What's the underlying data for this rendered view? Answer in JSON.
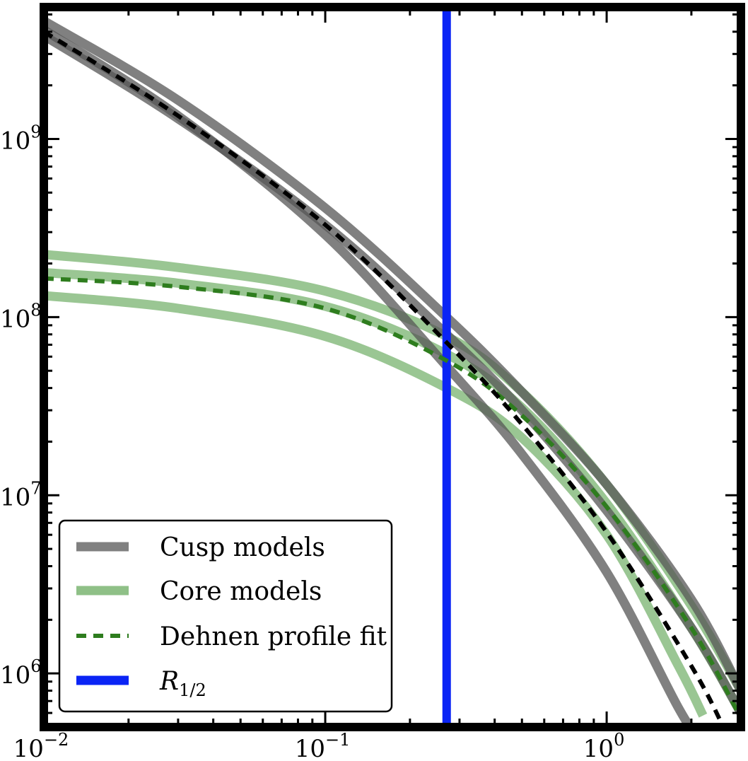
{
  "chart_data": {
    "type": "line",
    "title": "",
    "xlabel": "",
    "ylabel": "",
    "xscale": "log",
    "yscale": "log",
    "xlim": [
      0.01,
      3.0
    ],
    "ylim": [
      500000,
      5500000000
    ],
    "x_ticks": [
      {
        "value": 0.01,
        "base": "10",
        "exp": "−2"
      },
      {
        "value": 0.1,
        "base": "10",
        "exp": "−1"
      },
      {
        "value": 1.0,
        "base": "10",
        "exp": "0"
      }
    ],
    "y_ticks": [
      {
        "value": 1000000,
        "base": "10",
        "exp": "6"
      },
      {
        "value": 10000000,
        "base": "10",
        "exp": "7"
      },
      {
        "value": 100000000,
        "base": "10",
        "exp": "8"
      },
      {
        "value": 1000000000,
        "base": "10",
        "exp": "9"
      }
    ],
    "grid": false,
    "legend_position": "bottom-left",
    "legend": [
      {
        "label": "Cusp models",
        "style": "thick",
        "color": "#808080"
      },
      {
        "label": "Core models",
        "style": "thick",
        "color": "#8fc087"
      },
      {
        "label": "Dehnen profile fit",
        "style": "dashed",
        "color": "#2e7d1e"
      },
      {
        "label": "R",
        "sub": "1/2",
        "style": "thick",
        "color": "#0a24f5"
      }
    ],
    "vline": {
      "x": 0.27,
      "color": "#0a24f5",
      "label": "R1/2"
    },
    "series": [
      {
        "group": "Cusp models",
        "color": "#555555",
        "opacity": 0.75,
        "points": [
          [
            0.01,
            4600000000
          ],
          [
            0.03,
            1650000000
          ],
          [
            0.1,
            410000000
          ],
          [
            0.27,
            100000000
          ],
          [
            0.5,
            38000000
          ],
          [
            1.0,
            11500000
          ],
          [
            2.0,
            2600000
          ],
          [
            3.0,
            800000
          ]
        ]
      },
      {
        "group": "Cusp models",
        "color": "#555555",
        "opacity": 0.75,
        "points": [
          [
            0.01,
            4100000000
          ],
          [
            0.03,
            1350000000
          ],
          [
            0.1,
            290000000
          ],
          [
            0.27,
            53000000
          ],
          [
            0.5,
            17000000
          ],
          [
            1.0,
            3700000
          ],
          [
            1.8,
            640000
          ],
          [
            2.2,
            400000
          ]
        ]
      },
      {
        "group": "Cusp models",
        "color": "#555555",
        "opacity": 0.75,
        "points": [
          [
            0.01,
            3800000000
          ],
          [
            0.03,
            1300000000
          ],
          [
            0.1,
            330000000
          ],
          [
            0.27,
            80000000
          ],
          [
            0.5,
            30000000
          ],
          [
            1.0,
            8200000
          ],
          [
            2.0,
            1800000
          ],
          [
            3.0,
            600000
          ]
        ]
      },
      {
        "group": "Core models",
        "color": "#8fc087",
        "opacity": 0.9,
        "points": [
          [
            0.01,
            225000000
          ],
          [
            0.03,
            190000000
          ],
          [
            0.1,
            140000000
          ],
          [
            0.27,
            78000000
          ],
          [
            0.5,
            38000000
          ],
          [
            1.0,
            11500000
          ],
          [
            2.0,
            2400000
          ],
          [
            3.0,
            800000
          ]
        ]
      },
      {
        "group": "Core models",
        "color": "#8fc087",
        "opacity": 0.9,
        "points": [
          [
            0.01,
            178000000
          ],
          [
            0.03,
            155000000
          ],
          [
            0.1,
            115000000
          ],
          [
            0.27,
            62000000
          ],
          [
            0.5,
            31000000
          ],
          [
            1.0,
            9000000
          ],
          [
            2.0,
            1800000
          ],
          [
            3.0,
            600000
          ]
        ]
      },
      {
        "group": "Core models",
        "color": "#8fc087",
        "opacity": 0.9,
        "points": [
          [
            0.01,
            132000000
          ],
          [
            0.03,
            112000000
          ],
          [
            0.1,
            78000000
          ],
          [
            0.27,
            40000000
          ],
          [
            0.5,
            21000000
          ],
          [
            1.0,
            6000000
          ],
          [
            1.8,
            1100000
          ],
          [
            2.2,
            580000
          ]
        ]
      },
      {
        "group": "Dehnen profile fit",
        "color": "#2e7d1e",
        "dashed": true,
        "points": [
          [
            0.01,
            165000000
          ],
          [
            0.03,
            148000000
          ],
          [
            0.1,
            112000000
          ],
          [
            0.27,
            57000000
          ],
          [
            0.5,
            28000000
          ],
          [
            1.0,
            8600000
          ],
          [
            2.0,
            1800000
          ],
          [
            3.0,
            560000
          ]
        ]
      },
      {
        "group": "Cusp fit",
        "color": "#000000",
        "dashed": true,
        "points": [
          [
            0.01,
            4000000000
          ],
          [
            0.03,
            1350000000
          ],
          [
            0.1,
            330000000
          ],
          [
            0.27,
            72000000
          ],
          [
            0.5,
            25000000
          ],
          [
            1.0,
            6200000
          ],
          [
            2.0,
            1100000
          ],
          [
            2.6,
            500000
          ]
        ]
      }
    ]
  }
}
